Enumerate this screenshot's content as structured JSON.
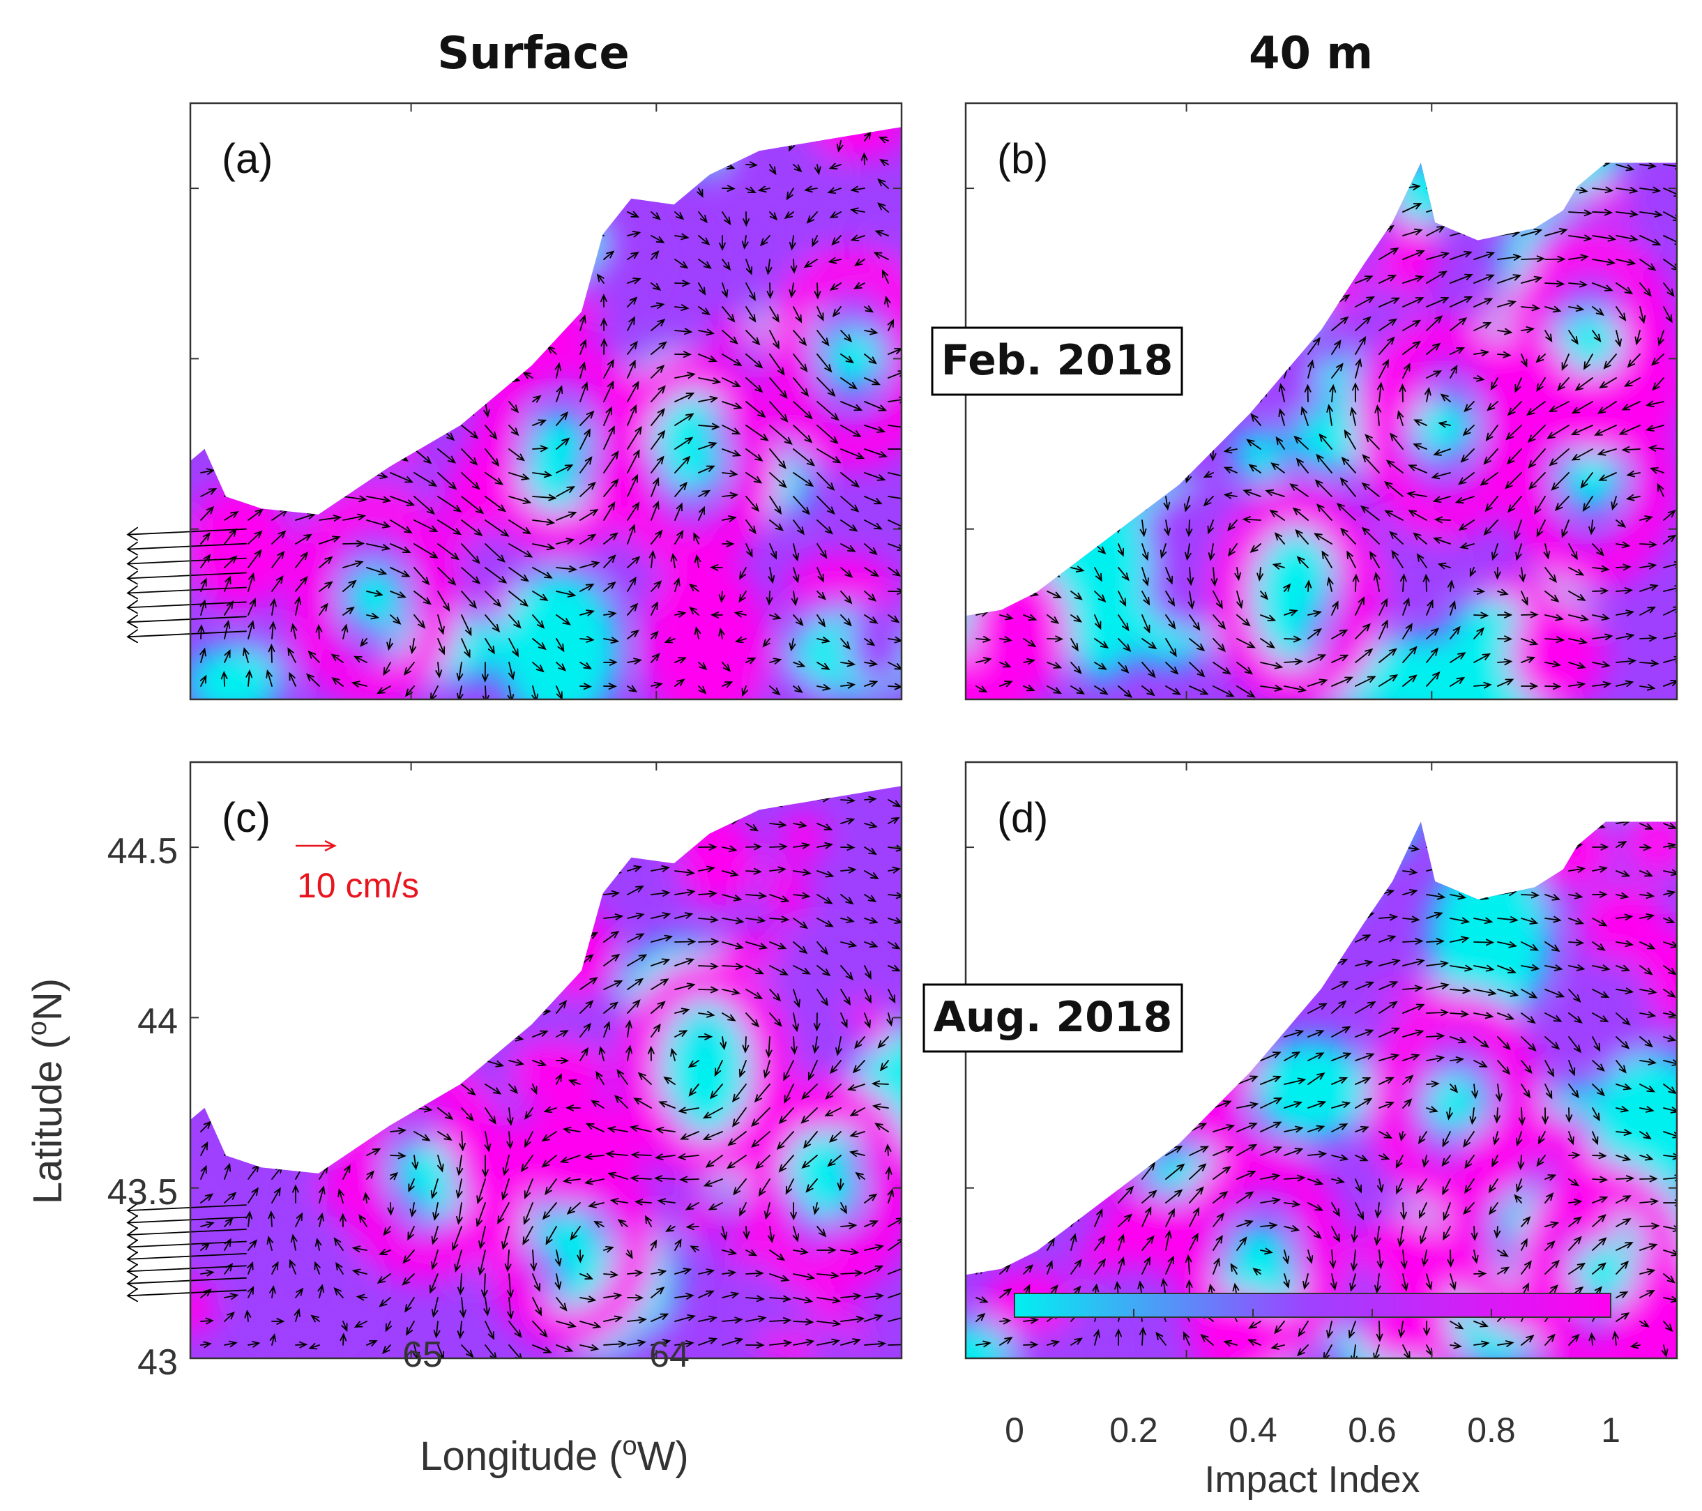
{
  "column_titles": [
    "Surface",
    "40 m"
  ],
  "panel_labels": [
    "(a)",
    "(b)",
    "(c)",
    "(d)"
  ],
  "period_labels": [
    "Feb. 2018",
    "Aug. 2018"
  ],
  "reference_arrow": {
    "label": "10 cm/s",
    "speed_cm_s": 10,
    "color": "#e8141e"
  },
  "colors": {
    "low": "#00f0f0",
    "mid": "#a040ff",
    "high": "#ff00f0",
    "land": "#ffffff",
    "arrows": "#000000"
  },
  "chart_data": {
    "type": "heatmap",
    "title": "",
    "xlabel": "Longitude (°W)",
    "ylabel": "Latitude (°N)",
    "xlim": [
      65.9,
      63.0
    ],
    "ylim": [
      43.0,
      44.75
    ],
    "x_ticks": [
      {
        "value": 65,
        "label": "65"
      },
      {
        "value": 64,
        "label": "64"
      }
    ],
    "y_ticks": [
      {
        "value": 44.5,
        "label": "44.5"
      },
      {
        "value": 44,
        "label": "44"
      },
      {
        "value": 43.5,
        "label": "43.5"
      },
      {
        "value": 43,
        "label": "43"
      }
    ],
    "colorbar": {
      "label": "Impact Index",
      "range": [
        0,
        1
      ],
      "ticks": [
        "0",
        "0.2",
        "0.4",
        "0.6",
        "0.8",
        "1"
      ]
    },
    "panels": [
      {
        "id": "a",
        "depth": "Surface",
        "period": "Feb. 2018",
        "eddies": [
          {
            "lon": 65.15,
            "lat": 43.3,
            "sense": "cw"
          },
          {
            "lon": 64.4,
            "lat": 43.75,
            "sense": "ccw"
          },
          {
            "lon": 63.85,
            "lat": 43.7,
            "sense": "cw"
          },
          {
            "lon": 63.2,
            "lat": 44.0,
            "sense": "ccw"
          }
        ],
        "inflow": {
          "lat_min": 43.2,
          "lat_max": 43.5
        }
      },
      {
        "id": "b",
        "depth": "40 m",
        "period": "Feb. 2018",
        "eddies": [
          {
            "lon": 64.55,
            "lat": 43.3,
            "sense": "ccw"
          },
          {
            "lon": 63.95,
            "lat": 43.8,
            "sense": "cw"
          },
          {
            "lon": 63.35,
            "lat": 43.65,
            "sense": "ccw"
          },
          {
            "lon": 63.35,
            "lat": 44.05,
            "sense": "cw"
          }
        ],
        "inflow": null
      },
      {
        "id": "c",
        "depth": "Surface",
        "period": "Aug. 2018",
        "eddies": [
          {
            "lon": 64.95,
            "lat": 43.55,
            "sense": "cw"
          },
          {
            "lon": 64.35,
            "lat": 43.35,
            "sense": "ccw"
          },
          {
            "lon": 63.8,
            "lat": 43.85,
            "sense": "cw"
          },
          {
            "lon": 63.3,
            "lat": 43.5,
            "sense": "ccw"
          }
        ],
        "inflow": {
          "lat_min": 43.2,
          "lat_max": 43.45
        }
      },
      {
        "id": "d",
        "depth": "40 m",
        "period": "Aug. 2018",
        "eddies": [
          {
            "lon": 64.7,
            "lat": 43.3,
            "sense": "cw"
          },
          {
            "lon": 63.9,
            "lat": 43.75,
            "sense": "cw"
          },
          {
            "lon": 63.6,
            "lat": 43.4,
            "sense": "ccw"
          },
          {
            "lon": 63.3,
            "lat": 43.25,
            "sense": "cw"
          }
        ],
        "inflow": null
      }
    ]
  }
}
